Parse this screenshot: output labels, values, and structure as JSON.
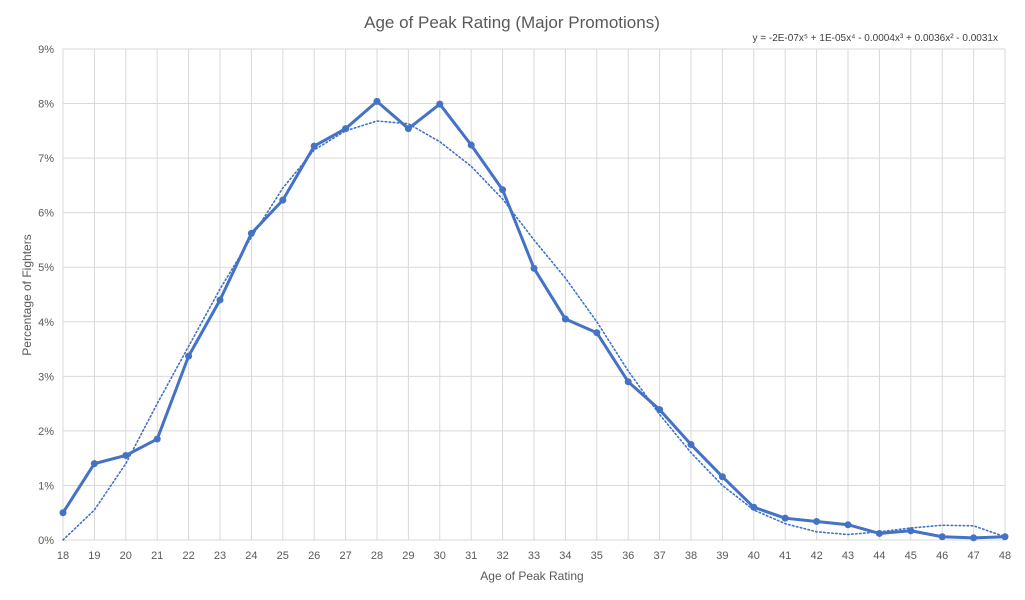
{
  "chart_data": {
    "type": "line",
    "title": "Age of Peak Rating (Major Promotions)",
    "xlabel": "Age of Peak Rating",
    "ylabel": "Percentage of Fighters",
    "trendline_equation": "y = -2E-07x⁵ + 1E-05x⁴ - 0.0004x³ + 0.0036x² - 0.0031x",
    "x": [
      18,
      19,
      20,
      21,
      22,
      23,
      24,
      25,
      26,
      27,
      28,
      29,
      30,
      31,
      32,
      33,
      34,
      35,
      36,
      37,
      38,
      39,
      40,
      41,
      42,
      43,
      44,
      45,
      46,
      47,
      48
    ],
    "x_ticks": [
      "18",
      "19",
      "20",
      "21",
      "22",
      "23",
      "24",
      "25",
      "26",
      "27",
      "28",
      "29",
      "30",
      "31",
      "32",
      "33",
      "34",
      "35",
      "36",
      "37",
      "38",
      "39",
      "40",
      "41",
      "42",
      "43",
      "44",
      "45",
      "46",
      "47",
      "48"
    ],
    "ylim": [
      0,
      9
    ],
    "y_ticks": [
      "0%",
      "1%",
      "2%",
      "3%",
      "4%",
      "5%",
      "6%",
      "7%",
      "8%",
      "9%"
    ],
    "grid": true,
    "series": [
      {
        "values": [
          0.5,
          1.4,
          1.55,
          1.85,
          3.37,
          4.4,
          5.62,
          6.23,
          7.22,
          7.54,
          8.04,
          7.54,
          7.99,
          7.24,
          6.42,
          4.98,
          4.05,
          3.8,
          2.9,
          2.39,
          1.75,
          1.16,
          0.6,
          0.4,
          0.34,
          0.28,
          0.12,
          0.17,
          0.06,
          0.04,
          0.06
        ],
        "color": "#4472C4"
      },
      {
        "values": [
          0.0,
          0.55,
          1.4,
          2.5,
          3.55,
          4.6,
          5.55,
          6.45,
          7.15,
          7.5,
          7.68,
          7.63,
          7.3,
          6.85,
          6.25,
          5.5,
          4.8,
          4.0,
          3.1,
          2.3,
          1.6,
          1.0,
          0.55,
          0.3,
          0.15,
          0.1,
          0.15,
          0.22,
          0.27,
          0.26,
          0.06
        ],
        "color": "#4472C4",
        "style": "dotted",
        "role": "trendline"
      }
    ]
  }
}
